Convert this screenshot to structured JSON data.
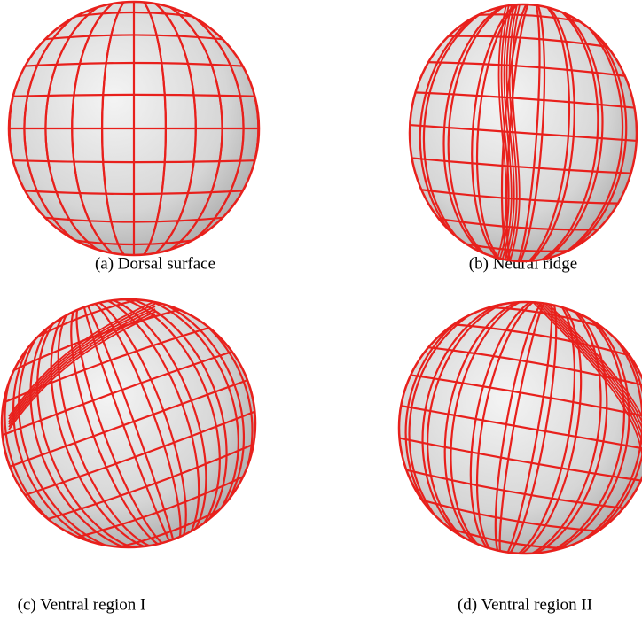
{
  "figure": {
    "panels": [
      {
        "caption": "(a) Dorsal surface"
      },
      {
        "caption": "(b) Neural ridge"
      },
      {
        "caption": "(c) Ventral region I"
      },
      {
        "caption": "(d) Ventral region II"
      }
    ]
  }
}
